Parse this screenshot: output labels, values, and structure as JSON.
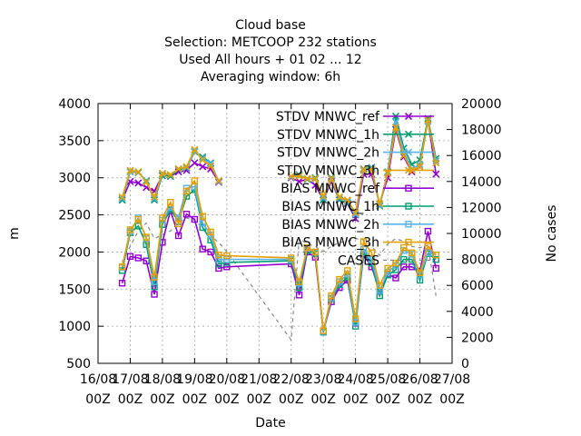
{
  "chart_data": {
    "type": "line",
    "title_lines": [
      "Cloud base",
      "Selection: METCOOP    232 stations",
      "Used  All hours  + 01 02 ... 12",
      "Averaging window:  6h"
    ],
    "xlabel": "Date",
    "ylabel": "m",
    "y2label": "No cases",
    "ylim": [
      500,
      4000
    ],
    "y2lim": [
      0,
      20000
    ],
    "xlim": [
      0,
      11
    ],
    "x_ticks": [
      {
        "x": 0,
        "l1": "16/08",
        "l2": "00Z"
      },
      {
        "x": 1,
        "l1": "17/08",
        "l2": "00Z"
      },
      {
        "x": 2,
        "l1": "18/08",
        "l2": "00Z"
      },
      {
        "x": 3,
        "l1": "19/08",
        "l2": "00Z"
      },
      {
        "x": 4,
        "l1": "20/08",
        "l2": "00Z"
      },
      {
        "x": 5,
        "l1": "21/08",
        "l2": "00Z"
      },
      {
        "x": 6,
        "l1": "22/08",
        "l2": "00Z"
      },
      {
        "x": 7,
        "l1": "23/08",
        "l2": "00Z"
      },
      {
        "x": 8,
        "l1": "24/08",
        "l2": "00Z"
      },
      {
        "x": 9,
        "l1": "25/08",
        "l2": "00Z"
      },
      {
        "x": 10,
        "l1": "26/08",
        "l2": "00Z"
      },
      {
        "x": 11,
        "l1": "27/08",
        "l2": "00Z"
      }
    ],
    "y_ticks": [
      500,
      1000,
      1500,
      2000,
      2500,
      3000,
      3500,
      4000
    ],
    "y2_ticks": [
      0,
      2000,
      4000,
      6000,
      8000,
      10000,
      12000,
      14000,
      16000,
      18000,
      20000
    ],
    "grid": true,
    "legend_position": "top-right",
    "x": [
      0.75,
      1.0,
      1.25,
      1.5,
      1.75,
      2.0,
      2.25,
      2.5,
      2.75,
      3.0,
      3.25,
      3.5,
      3.75,
      4.0,
      6.0,
      6.25,
      6.5,
      6.75,
      7.0,
      7.25,
      7.5,
      7.75,
      8.0,
      8.25,
      8.5,
      8.75,
      9.0,
      9.25,
      9.5,
      9.75,
      10.0,
      10.25,
      10.5,
      10.75
    ],
    "series": [
      {
        "name": "STDV MNWC_ref",
        "color": "#9400d3",
        "marker": "x",
        "dash": false,
        "values": [
          2700,
          2950,
          2930,
          2870,
          2820,
          3030,
          3020,
          3080,
          3100,
          3200,
          3150,
          3120,
          2940,
          null,
          3000,
          2950,
          2980,
          2900,
          2700,
          2950,
          2700,
          2650,
          2450,
          3050,
          3050,
          2650,
          3000,
          3650,
          3280,
          3080,
          3150,
          3780,
          3050,
          null
        ]
      },
      {
        "name": "STDV MNWC_1h",
        "color": "#009e73",
        "marker": "x",
        "dash": false,
        "values": [
          2700,
          3080,
          3070,
          2960,
          2700,
          3030,
          3020,
          3110,
          3130,
          3350,
          3280,
          3200,
          2950,
          null,
          3010,
          3040,
          2980,
          3000,
          2700,
          3000,
          2700,
          2660,
          2500,
          3120,
          3140,
          2620,
          3080,
          3830,
          3400,
          3180,
          3240,
          3800,
          3260,
          null
        ]
      },
      {
        "name": "STDV MNWC_2h",
        "color": "#56b4e9",
        "marker": "x",
        "dash": false,
        "values": [
          2720,
          3080,
          3080,
          2950,
          2720,
          3050,
          3040,
          3120,
          3140,
          3360,
          3260,
          3190,
          2950,
          null,
          3010,
          3030,
          2990,
          2980,
          2730,
          2980,
          2730,
          2680,
          2510,
          3100,
          3130,
          2630,
          3070,
          3750,
          3350,
          3120,
          3180,
          3760,
          3230,
          null
        ]
      },
      {
        "name": "STDV MNWC_3h",
        "color": "#e69f00",
        "marker": "x",
        "dash": false,
        "values": [
          2740,
          3100,
          3080,
          2940,
          2740,
          3060,
          3040,
          3120,
          3150,
          3380,
          3240,
          3160,
          2960,
          null,
          3020,
          3020,
          2990,
          2990,
          2750,
          2990,
          2740,
          2700,
          2530,
          3110,
          3110,
          2650,
          3060,
          3680,
          3300,
          3100,
          3150,
          3780,
          3200,
          null
        ]
      },
      {
        "name": "BIAS MNWC_ref",
        "color": "#9400d3",
        "marker": "square",
        "dash": false,
        "values": [
          1580,
          1940,
          1920,
          1880,
          1430,
          2130,
          2560,
          2220,
          2510,
          2440,
          2040,
          2000,
          1780,
          1800,
          1840,
          1420,
          2000,
          1930,
          930,
          1330,
          1520,
          1620,
          1040,
          1960,
          1800,
          1470,
          1700,
          1650,
          1800,
          1800,
          1740,
          2280,
          1780,
          null
        ]
      },
      {
        "name": "BIAS MNWC_1h",
        "color": "#009e73",
        "marker": "square",
        "dash": false,
        "values": [
          1750,
          2260,
          2350,
          2100,
          1530,
          2370,
          2570,
          2410,
          2750,
          2840,
          2330,
          2160,
          1840,
          1860,
          1880,
          1520,
          2020,
          1980,
          920,
          1370,
          1560,
          1660,
          1000,
          1990,
          1850,
          1410,
          1690,
          1760,
          1900,
          1900,
          1620,
          1980,
          1900,
          null
        ]
      },
      {
        "name": "BIAS MNWC_2h",
        "color": "#56b4e9",
        "marker": "square",
        "dash": false,
        "values": [
          1790,
          2280,
          2460,
          2180,
          1600,
          2430,
          2600,
          2460,
          2860,
          2880,
          2390,
          2230,
          1900,
          1900,
          1900,
          1580,
          2050,
          2000,
          930,
          1380,
          1600,
          1700,
          1050,
          2040,
          1900,
          1480,
          1730,
          1820,
          2020,
          1970,
          1690,
          1990,
          1960,
          null
        ]
      },
      {
        "name": "BIAS MNWC_3h",
        "color": "#e69f00",
        "marker": "square",
        "dash": false,
        "values": [
          1800,
          2300,
          2440,
          2200,
          1660,
          2460,
          2670,
          2380,
          2820,
          2960,
          2480,
          2270,
          1960,
          1950,
          1920,
          1600,
          2060,
          2000,
          940,
          1410,
          1630,
          1750,
          1100,
          2140,
          1990,
          1550,
          1780,
          1850,
          2060,
          1990,
          1720,
          2080,
          1960,
          null
        ]
      },
      {
        "name": "CASES",
        "color": "#888888",
        "marker": "none",
        "dash": true,
        "axis": "y2",
        "values": [
          7800,
          9000,
          10200,
          10800,
          9600,
          9900,
          10200,
          10800,
          11200,
          11000,
          10400,
          9800,
          9300,
          8600,
          1800,
          9600,
          9200,
          9000,
          8600,
          9000,
          9300,
          9400,
          9600,
          9500,
          9000,
          8300,
          9200,
          9600,
          9400,
          9000,
          8900,
          9100,
          5200,
          null
        ]
      }
    ]
  }
}
